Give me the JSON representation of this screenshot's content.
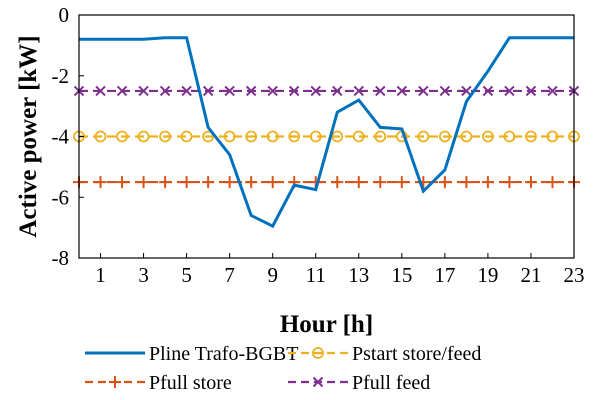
{
  "chart_data": {
    "type": "line",
    "xlabel": "Hour [h]",
    "ylabel": "Active power [kW]",
    "xlim": [
      0,
      23
    ],
    "ylim": [
      -8,
      0
    ],
    "xticks": [
      1,
      3,
      5,
      7,
      9,
      11,
      13,
      15,
      17,
      19,
      21,
      23
    ],
    "yticks": [
      0,
      -2,
      -4,
      -6,
      -8
    ],
    "grid": false,
    "legend_position": "bottom",
    "x": [
      0,
      1,
      2,
      3,
      4,
      5,
      6,
      7,
      8,
      9,
      10,
      11,
      12,
      13,
      14,
      15,
      16,
      17,
      18,
      19,
      20,
      21,
      22,
      23
    ],
    "series": [
      {
        "name": "Pline Trafo-BGBT",
        "color": "#0072BD",
        "marker": "none",
        "linestyle": "solid",
        "values": [
          -0.8,
          -0.8,
          -0.8,
          -0.8,
          -0.75,
          -0.75,
          -3.7,
          -4.6,
          -6.6,
          -6.95,
          -5.6,
          -5.75,
          -3.2,
          -2.8,
          -3.7,
          -3.75,
          -5.8,
          -5.1,
          -2.85,
          -1.85,
          -0.75,
          -0.75,
          -0.75,
          -0.75
        ]
      },
      {
        "name": "Pstart store/feed",
        "color": "#EDB120",
        "marker": "circle",
        "linestyle": "dashed",
        "values": [
          -4.0,
          -4.0,
          -4.0,
          -4.0,
          -4.0,
          -4.0,
          -4.0,
          -4.0,
          -4.0,
          -4.0,
          -4.0,
          -4.0,
          -4.0,
          -4.0,
          -4.0,
          -4.0,
          -4.0,
          -4.0,
          -4.0,
          -4.0,
          -4.0,
          -4.0,
          -4.0,
          -4.0
        ]
      },
      {
        "name": "Pfull store",
        "color": "#D95319",
        "marker": "plus",
        "linestyle": "dashed",
        "values": [
          -5.5,
          -5.5,
          -5.5,
          -5.5,
          -5.5,
          -5.5,
          -5.5,
          -5.5,
          -5.5,
          -5.5,
          -5.5,
          -5.5,
          -5.5,
          -5.5,
          -5.5,
          -5.5,
          -5.5,
          -5.5,
          -5.5,
          -5.5,
          -5.5,
          -5.5,
          -5.5,
          -5.5
        ]
      },
      {
        "name": "Pfull feed",
        "color": "#7E2F8E",
        "marker": "x",
        "linestyle": "dashed",
        "values": [
          -2.5,
          -2.5,
          -2.5,
          -2.5,
          -2.5,
          -2.5,
          -2.5,
          -2.5,
          -2.5,
          -2.5,
          -2.5,
          -2.5,
          -2.5,
          -2.5,
          -2.5,
          -2.5,
          -2.5,
          -2.5,
          -2.5,
          -2.5,
          -2.5,
          -2.5,
          -2.5,
          -2.5
        ]
      }
    ]
  }
}
